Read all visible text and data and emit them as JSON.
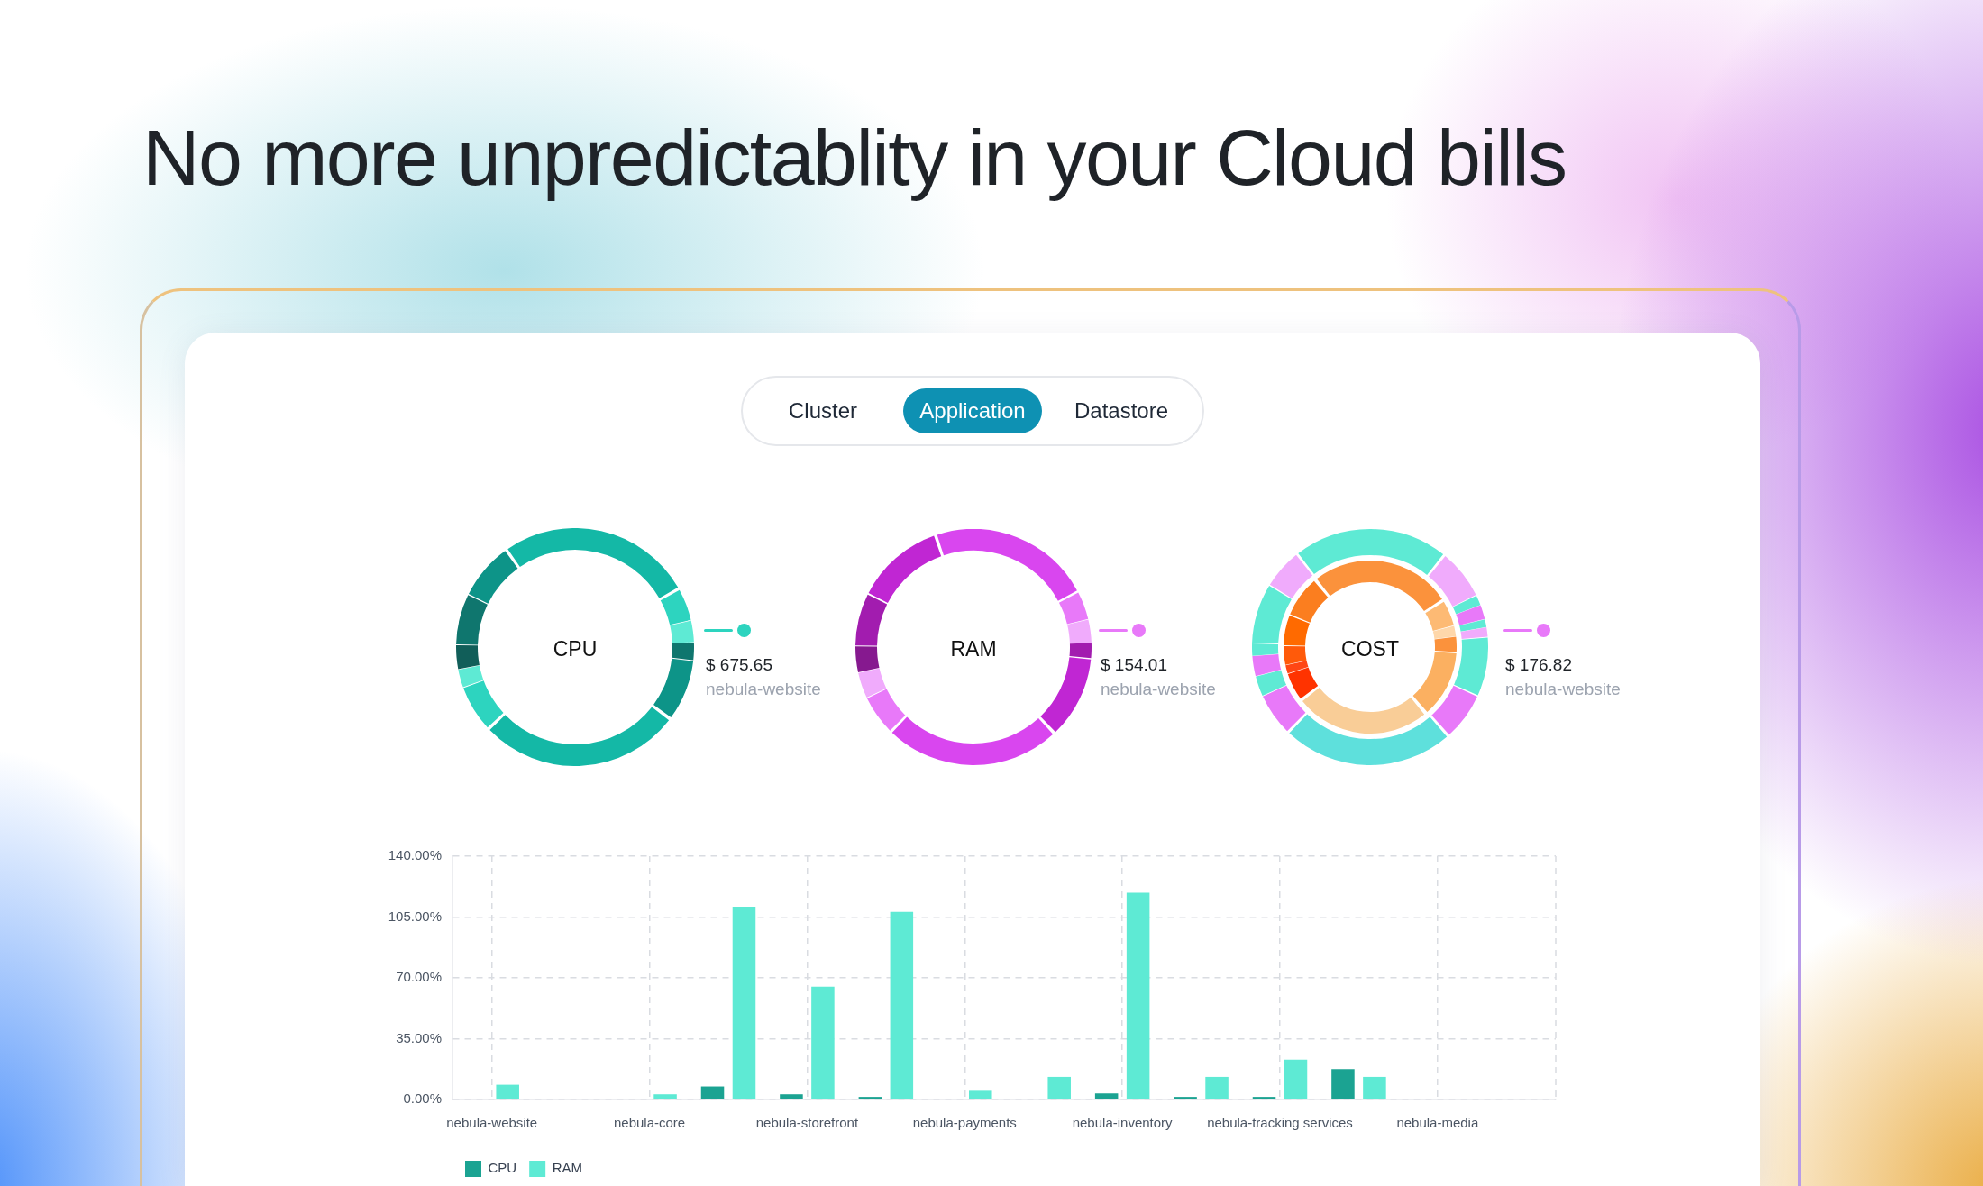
{
  "chart_data": [
    {
      "type": "other",
      "title": "No more unpredictablity in your Cloud bills",
      "annotations": [
        "Cluster",
        "Application",
        "Datastore"
      ]
    },
    {
      "type": "donut",
      "title": "CPU",
      "categories": [
        null,
        null,
        null,
        null,
        null,
        null,
        null,
        null,
        null,
        null,
        null
      ],
      "values": [
        26.9,
        4.4,
        3.0,
        2.4,
        8.4,
        27.9,
        6.4,
        2.5,
        3.3,
        7.0,
        7.8
      ],
      "colors": [
        "#14b8a6",
        "#2dd4bf",
        "#5eead4",
        "#0f766e",
        "#0d9488",
        "#14b8a6",
        "#2dd4bf",
        "#5eead4",
        "#115e59",
        "#0f766e",
        "#0d9488"
      ],
      "annotations": [
        "$ 675.65",
        "nebula-website"
      ]
    },
    {
      "type": "donut",
      "title": "RAM",
      "categories": [
        null,
        null,
        null,
        null,
        null,
        null,
        null,
        null,
        null,
        null,
        null
      ],
      "values": [
        22.6,
        3.9,
        3.2,
        2.1,
        11.4,
        24.5,
        5.5,
        3.6,
        3.6,
        7.3,
        12.3
      ],
      "colors": [
        "#d946ef",
        "#e879f9",
        "#f0abfc",
        "#a21caf",
        "#c026d3",
        "#d946ef",
        "#e879f9",
        "#f0abfc",
        "#86198f",
        "#a21caf",
        "#c026d3"
      ],
      "annotations": [
        "$ 154.01",
        "nebula-website"
      ]
    },
    {
      "type": "donut",
      "title": "COST",
      "series": [
        {
          "values": [
            21.6,
            6.9,
            1.4,
            2.0,
            1.1,
            1.3,
            8.2,
            6.6,
            23.9,
            5.9,
            2.8,
            2.8,
            1.7,
            8.3,
            5.5
          ],
          "colors": [
            "#5eead4",
            "#f0abfc",
            "#5eead4",
            "#e879f9",
            "#5eead4",
            "#f0abfc",
            "#5eead4",
            "#e879f9",
            "#5ee0dc",
            "#e879f9",
            "#5eead4",
            "#e879f9",
            "#5eead4",
            "#5eead4",
            "#f0abfc"
          ]
        },
        {
          "values": [
            27.2,
            4.9,
            2.0,
            2.9,
            12.8,
            26.0,
            5.3,
            1.6,
            3.6,
            5.8,
            7.9
          ],
          "colors": [
            "#fb923c",
            "#fdba74",
            "#fed7aa",
            "#fb923c",
            "#fbb061",
            "#f9cd97",
            "#ff3300",
            "#ff4714",
            "#ff5a0a",
            "#ff6a00",
            "#fb7e1f"
          ]
        }
      ],
      "annotations": [
        "$ 176.82",
        "nebula-website"
      ]
    },
    {
      "type": "bar",
      "categories": [
        "nebula-website",
        null,
        "nebula-core",
        null,
        "nebula-storefront",
        null,
        "nebula-payments",
        null,
        "nebula-inventory",
        null,
        "nebula-tracking services",
        null,
        "nebula-media",
        null
      ],
      "series": [
        {
          "name": "CPU",
          "color": "#1ba392",
          "values": [
            null,
            null,
            null,
            7.5,
            3,
            1.5,
            null,
            null,
            3.5,
            1.5,
            1.5,
            17.5,
            null,
            null
          ]
        },
        {
          "name": "RAM",
          "color": "#5eead4",
          "values": [
            8.5,
            null,
            3,
            111,
            65,
            108,
            5,
            13,
            119,
            13,
            23,
            13,
            null,
            null
          ]
        }
      ],
      "ylim": [
        0,
        140
      ],
      "yticks": [
        {
          "value": 0,
          "label": "0.00%"
        },
        {
          "value": 35,
          "label": "35.00%"
        },
        {
          "value": 70,
          "label": "70.00%"
        },
        {
          "value": 105,
          "label": "105.00%"
        },
        {
          "value": 140,
          "label": "140.00%"
        }
      ],
      "grid": true,
      "legend": "bottom left"
    }
  ]
}
